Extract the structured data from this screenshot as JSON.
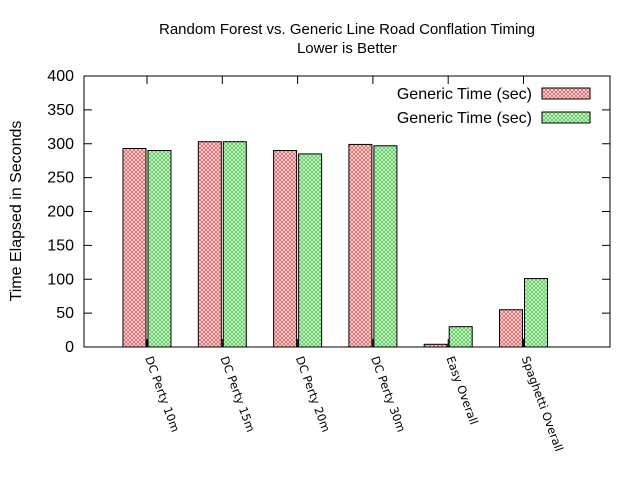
{
  "chart_data": {
    "type": "bar",
    "title": "Random Forest vs. Generic Line Road Conflation Timing",
    "subtitle": "Lower is Better",
    "xlabel": "",
    "ylabel": "Time Elapsed in Seconds",
    "ylim": [
      0,
      400
    ],
    "yticks": [
      0,
      50,
      100,
      150,
      200,
      250,
      300,
      350,
      400
    ],
    "categories": [
      "DC Perty 10m",
      "DC Perty 15m",
      "DC Perty 20m",
      "DC Perty 30m",
      "Easy Overall",
      "Spaghetti Overall"
    ],
    "series": [
      {
        "name": "Generic Time (sec)",
        "color": "#e87878",
        "fill": "#f6c0c0",
        "values": [
          293,
          303,
          290,
          299,
          4,
          55
        ]
      },
      {
        "name": "Generic Time (sec)",
        "color": "#52c452",
        "fill": "#b2f0b2",
        "values": [
          290,
          303,
          285,
          297,
          30,
          101
        ]
      }
    ],
    "legend_position": "top-right",
    "grid": false
  }
}
